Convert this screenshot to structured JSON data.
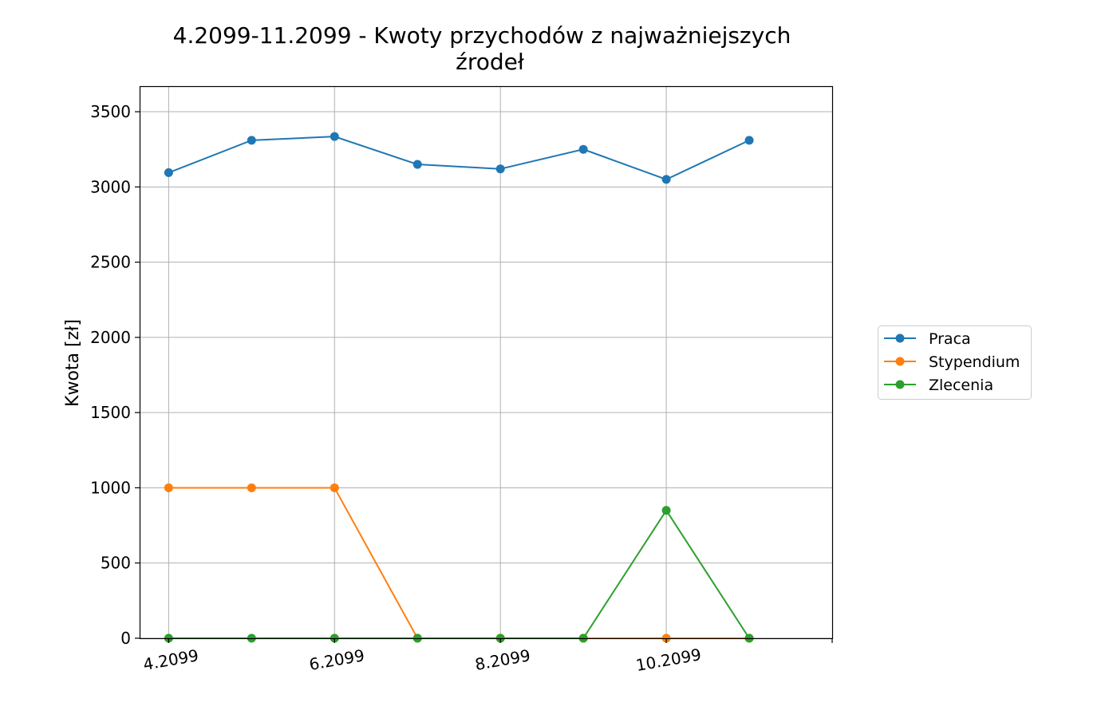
{
  "chart_data": {
    "type": "line",
    "title_line1": "4.2099-11.2099 - Kwoty przychodów z najważniejszych",
    "title_line2": "źrodeł",
    "xlabel": "",
    "ylabel": "Kwota [zł]",
    "x": [
      "4.2099",
      "5.2099",
      "6.2099",
      "7.2099",
      "8.2099",
      "9.2099",
      "10.2099",
      "11.2099"
    ],
    "x_tick_labels": [
      "4.2099",
      "6.2099",
      "8.2099",
      "10.2099"
    ],
    "x_tick_index": [
      0,
      2,
      4,
      6
    ],
    "x_range_index": [
      -0.35,
      8
    ],
    "ylim": [
      0,
      3670
    ],
    "y_ticks": [
      0,
      500,
      1000,
      1500,
      2000,
      2500,
      3000,
      3500
    ],
    "grid": true,
    "legend_position": "right",
    "series": [
      {
        "name": "Praca",
        "color": "#1f77b4",
        "values": [
          3095,
          3310,
          3335,
          3150,
          3120,
          3250,
          3050,
          3310
        ]
      },
      {
        "name": "Stypendium",
        "color": "#ff7f0e",
        "values": [
          1000,
          1000,
          1000,
          0,
          0,
          0,
          0,
          0
        ]
      },
      {
        "name": "Zlecenia",
        "color": "#2ca02c",
        "values": [
          0,
          0,
          0,
          0,
          0,
          0,
          850,
          0
        ]
      }
    ]
  }
}
